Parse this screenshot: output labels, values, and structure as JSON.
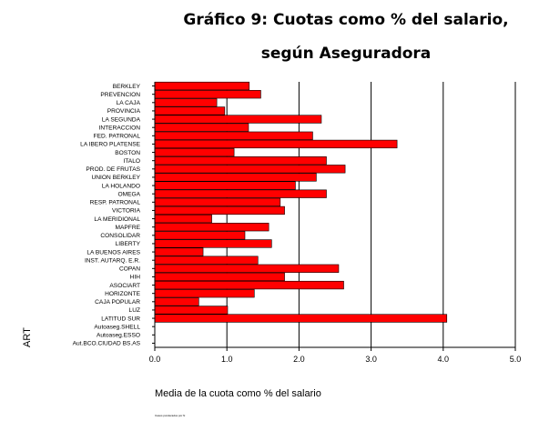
{
  "chart_data": {
    "type": "bar",
    "orientation": "horizontal",
    "title_line1": "Gráfico 9: Cuotas como % del salario,",
    "title_line2": "según Aseguradora",
    "xlabel": "Media de la cuota como % del salario",
    "ylabel": "ART",
    "footnote": "Casos ponderados por N",
    "xlim": [
      0,
      5
    ],
    "xticks": [
      "0.0",
      "1.0",
      "2.0",
      "3.0",
      "4.0",
      "5.0"
    ],
    "grid": true,
    "bar_color": "#ff0000",
    "categories": [
      "BERKLEY",
      "PREVENCION",
      "LA CAJA",
      "PROVINCIA",
      "LA SEGUNDA",
      "INTERACCION",
      "FED. PATRONAL",
      "LA IBERO PLATENSE",
      "BOSTON",
      "ITALO",
      "PROD. DE FRUTAS",
      "UNION BERKLEY",
      "LA HOLANDO",
      "OMEGA",
      "RESP. PATRONAL",
      "VICTORIA",
      "LA MERIDIONAL",
      "MAPFRE",
      "CONSOLIDAR",
      "LIBERTY",
      "LA BUENOS AIRES",
      "INST. AUTARQ. E.R.",
      "COPAN",
      "HIH",
      "ASOCIART",
      "HORIZONTE",
      "CAJA POPULAR",
      "LUZ",
      "LATITUD SUR",
      "Autoaseg.SHELL",
      "Autoaseg.ESSO",
      "Aut.BCO.CIUDAD BS.AS"
    ],
    "values": [
      1.31,
      1.47,
      0.86,
      0.97,
      2.31,
      1.3,
      2.19,
      3.36,
      1.1,
      2.38,
      2.64,
      2.24,
      1.95,
      2.38,
      1.74,
      1.8,
      0.79,
      1.58,
      1.25,
      1.62,
      0.67,
      1.43,
      2.55,
      1.8,
      2.62,
      1.38,
      0.61,
      1.01,
      4.05,
      0,
      0,
      0
    ]
  }
}
